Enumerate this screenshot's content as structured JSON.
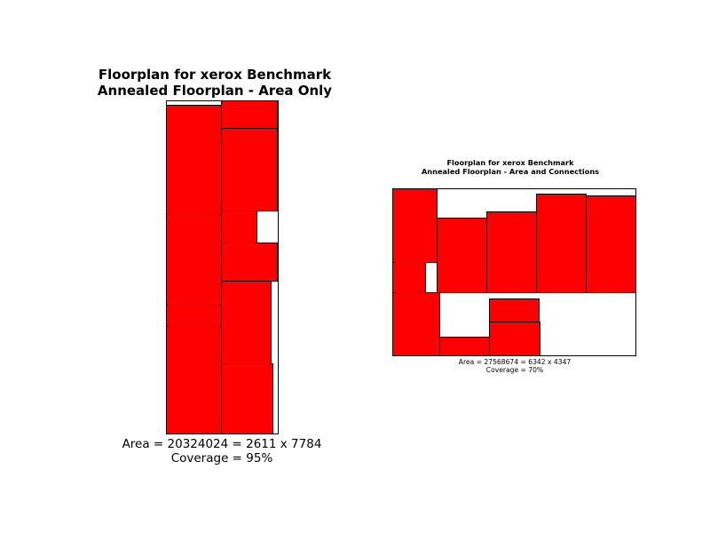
{
  "floorplans": [
    {
      "title_line1": "Floorplan for xerox Benchmark",
      "title_line2": "Annealed Floorplan - Area Only",
      "area_text": "Area = 20324024 = 2611 x 7784",
      "coverage_text": "Coverage = 95%",
      "block_color": "#ff0000"
    },
    {
      "title_line1": "Floorplan for xerox Benchmark",
      "title_line2": "Annealed Floorplan - Area and Connections",
      "area_text": "Area = 27568674 = 6342 x 4347",
      "coverage_text": "Coverage = 70%",
      "block_color": "#ff0000"
    }
  ]
}
